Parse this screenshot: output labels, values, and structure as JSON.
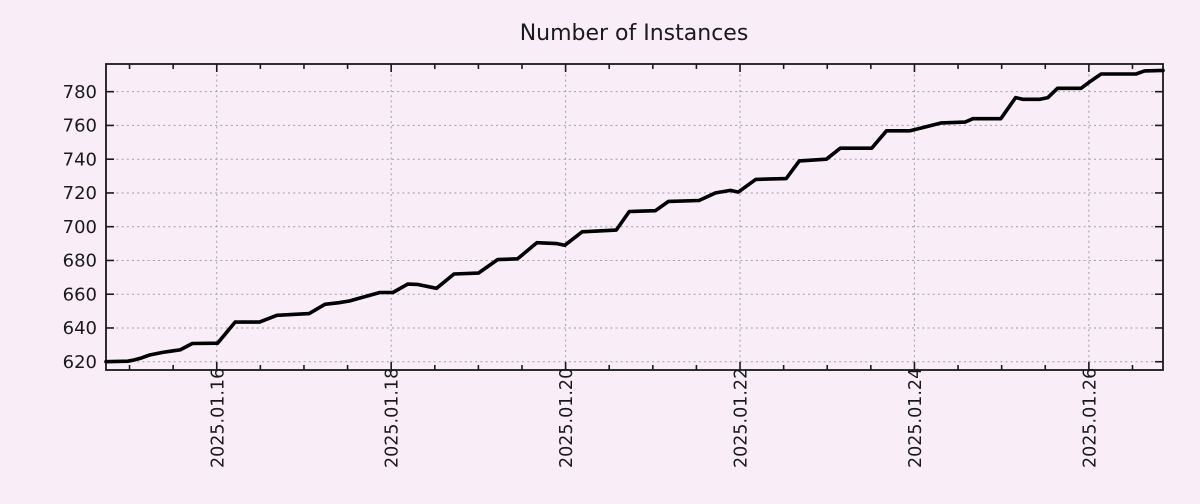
{
  "colors": {
    "background": "#f9edf8",
    "frame": "#1a1a1a",
    "text": "#1a1a1a",
    "grid": "#a0a0a0",
    "series_line": "#000000"
  },
  "chart_data": {
    "type": "line",
    "title": "Number of Instances",
    "legend": {
      "shown": false
    },
    "grid": {
      "shown": true,
      "line_style": "dotted",
      "color": "#a0a0a0"
    },
    "x_axis": {
      "label": "",
      "kind": "time",
      "units": "day of January 2025 (decimal)",
      "min_day": 14.73,
      "max_day": 26.85,
      "minor_tick_step_days": 0.5,
      "tick_label_rotation_deg": -90,
      "major_ticks": [
        {
          "day": 16,
          "label": "2025.01.16"
        },
        {
          "day": 18,
          "label": "2025.01.18"
        },
        {
          "day": 20,
          "label": "2025.01.20"
        },
        {
          "day": 22,
          "label": "2025.01.22"
        },
        {
          "day": 24,
          "label": "2025.01.24"
        },
        {
          "day": 26,
          "label": "2025.01.26"
        }
      ]
    },
    "y_axis": {
      "label": "",
      "min": 615.1,
      "max": 796.4,
      "ticks": [
        620,
        640,
        660,
        680,
        700,
        720,
        740,
        760,
        780
      ]
    },
    "series": [
      {
        "name": "instances",
        "color": "#000000",
        "line_width": 3.6,
        "points_day_value": [
          [
            14.73,
            620
          ],
          [
            14.98,
            620.3
          ],
          [
            15.05,
            621
          ],
          [
            15.12,
            622
          ],
          [
            15.23,
            624
          ],
          [
            15.38,
            625.5
          ],
          [
            15.5,
            626.5
          ],
          [
            15.58,
            627
          ],
          [
            15.72,
            630.8
          ],
          [
            16.01,
            631
          ],
          [
            16.21,
            643.5
          ],
          [
            16.49,
            643.5
          ],
          [
            16.69,
            647.5
          ],
          [
            17.06,
            648.5
          ],
          [
            17.24,
            654
          ],
          [
            17.4,
            655
          ],
          [
            17.52,
            656
          ],
          [
            17.87,
            661
          ],
          [
            18.02,
            661
          ],
          [
            18.19,
            666
          ],
          [
            18.3,
            665.8
          ],
          [
            18.52,
            663.5
          ],
          [
            18.72,
            672
          ],
          [
            19.0,
            672.5
          ],
          [
            19.22,
            680.5
          ],
          [
            19.45,
            681
          ],
          [
            19.67,
            690.5
          ],
          [
            19.9,
            690
          ],
          [
            19.99,
            689
          ],
          [
            20.19,
            697
          ],
          [
            20.58,
            698
          ],
          [
            20.73,
            709
          ],
          [
            21.03,
            709.5
          ],
          [
            21.18,
            715
          ],
          [
            21.53,
            715.5
          ],
          [
            21.72,
            720
          ],
          [
            21.89,
            721.5
          ],
          [
            21.98,
            720.5
          ],
          [
            22.18,
            728
          ],
          [
            22.53,
            728.5
          ],
          [
            22.68,
            739
          ],
          [
            22.99,
            740
          ],
          [
            23.15,
            746.5
          ],
          [
            23.51,
            746.5
          ],
          [
            23.68,
            756.8
          ],
          [
            23.95,
            756.8
          ],
          [
            24.31,
            761.5
          ],
          [
            24.58,
            762
          ],
          [
            24.67,
            764
          ],
          [
            24.99,
            764
          ],
          [
            25.16,
            776.5
          ],
          [
            25.24,
            775.5
          ],
          [
            25.44,
            775.5
          ],
          [
            25.53,
            776.5
          ],
          [
            25.64,
            782
          ],
          [
            25.91,
            782
          ],
          [
            26.0,
            785.5
          ],
          [
            26.14,
            790.5
          ],
          [
            26.54,
            790.5
          ],
          [
            26.64,
            792.3
          ],
          [
            26.85,
            792.6
          ]
        ]
      }
    ]
  }
}
